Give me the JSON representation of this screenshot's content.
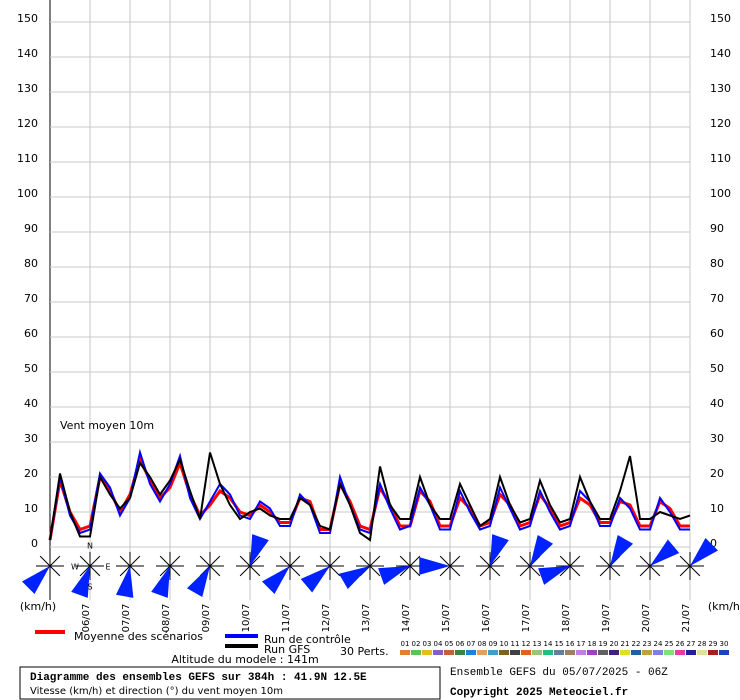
{
  "chart_data": {
    "type": "line",
    "title": "Diagramme des ensembles GEFS sur 384h : 41.9N 12.5E",
    "subtitle": "Vitesse (km/h) et direction (°) du vent moyen 10m",
    "annotation": "Vent moyen 10m",
    "y_unit": "(km/h)",
    "y2_unit": "(km/h)",
    "altitude": "Altitude du modele : 141m",
    "run_info": "Ensemble GEFS du 05/07/2025 - 06Z",
    "copyright": "Copyright 2025 Meteociel.fr",
    "compass": [
      "N",
      "W",
      "E",
      "S"
    ],
    "x": [
      0,
      6,
      12,
      18,
      24,
      30,
      36,
      42,
      48,
      54,
      60,
      66,
      72,
      78,
      84,
      90,
      96,
      102,
      108,
      114,
      120,
      126,
      132,
      138,
      144,
      150,
      156,
      162,
      168,
      174,
      180,
      186,
      192,
      198,
      204,
      210,
      216,
      222,
      228,
      234,
      240,
      246,
      252,
      258,
      264,
      270,
      276,
      282,
      288,
      294,
      300,
      306,
      312,
      318,
      324,
      330,
      336,
      342,
      348,
      354,
      360,
      366,
      372,
      378,
      384
    ],
    "xlim": [
      0,
      384
    ],
    "xticks": [
      {
        "value": 24,
        "label": "06/07"
      },
      {
        "value": 48,
        "label": "07/07"
      },
      {
        "value": 72,
        "label": "08/07"
      },
      {
        "value": 96,
        "label": "09/07"
      },
      {
        "value": 120,
        "label": "10/07"
      },
      {
        "value": 144,
        "label": "11/07"
      },
      {
        "value": 168,
        "label": "12/07"
      },
      {
        "value": 192,
        "label": "13/07"
      },
      {
        "value": 216,
        "label": "14/07"
      },
      {
        "value": 240,
        "label": "15/07"
      },
      {
        "value": 264,
        "label": "16/07"
      },
      {
        "value": 288,
        "label": "17/07"
      },
      {
        "value": 312,
        "label": "18/07"
      },
      {
        "value": 336,
        "label": "19/07"
      },
      {
        "value": 360,
        "label": "20/07"
      },
      {
        "value": 384,
        "label": "21/07"
      }
    ],
    "ylim": [
      0,
      150
    ],
    "yticks": [
      0,
      10,
      20,
      30,
      40,
      50,
      60,
      70,
      80,
      90,
      100,
      110,
      120,
      130,
      140,
      150
    ],
    "grid": true,
    "series": [
      {
        "name": "Moyenne des scénarios",
        "color": "#ff0000",
        "values": [
          2,
          19,
          10,
          5,
          6,
          20,
          16,
          10,
          15,
          25,
          19,
          14,
          17,
          24,
          15,
          9,
          12,
          16,
          14,
          10,
          9,
          12,
          10,
          7,
          7,
          14,
          13,
          5,
          5,
          18,
          13,
          6,
          5,
          17,
          12,
          6,
          6,
          16,
          13,
          6,
          6,
          14,
          11,
          6,
          7,
          15,
          12,
          6,
          7,
          15,
          11,
          6,
          7,
          14,
          12,
          7,
          7,
          13,
          12,
          6,
          6,
          13,
          11,
          6,
          6
        ]
      },
      {
        "name": "Run de contrôle",
        "color": "#0000ff",
        "values": [
          2,
          20,
          9,
          4,
          5,
          21,
          17,
          9,
          14,
          27,
          18,
          13,
          18,
          26,
          14,
          8,
          13,
          18,
          15,
          9,
          8,
          13,
          11,
          6,
          6,
          15,
          12,
          4,
          4,
          20,
          12,
          5,
          4,
          18,
          11,
          5,
          6,
          17,
          12,
          5,
          5,
          16,
          10,
          5,
          6,
          17,
          11,
          5,
          6,
          16,
          10,
          5,
          6,
          16,
          13,
          6,
          6,
          14,
          11,
          5,
          5,
          14,
          10,
          5,
          5
        ]
      },
      {
        "name": "Run GFS",
        "color": "#000000",
        "values": [
          2,
          21,
          10,
          3,
          3,
          20,
          15,
          11,
          14,
          24,
          20,
          15,
          19,
          25,
          16,
          8,
          27,
          18,
          12,
          8,
          10,
          11,
          9,
          8,
          8,
          14,
          12,
          6,
          5,
          18,
          12,
          4,
          2,
          23,
          12,
          8,
          8,
          20,
          12,
          8,
          8,
          18,
          12,
          6,
          8,
          20,
          12,
          7,
          8,
          19,
          12,
          7,
          8,
          20,
          13,
          8,
          8,
          16,
          26,
          8,
          8,
          10,
          9,
          8,
          9
        ]
      }
    ],
    "perturbations_label": "30 Perts.",
    "perturbations": [
      {
        "name": "01",
        "color": "#e08030"
      },
      {
        "name": "02",
        "color": "#60c060"
      },
      {
        "name": "03",
        "color": "#e0c020"
      },
      {
        "name": "04",
        "color": "#8060c0"
      },
      {
        "name": "05",
        "color": "#c06040"
      },
      {
        "name": "06",
        "color": "#408040"
      },
      {
        "name": "07",
        "color": "#2080e0"
      },
      {
        "name": "08",
        "color": "#e0a060"
      },
      {
        "name": "09",
        "color": "#40a0c0"
      },
      {
        "name": "10",
        "color": "#806020"
      },
      {
        "name": "11",
        "color": "#404040"
      },
      {
        "name": "12",
        "color": "#e06020"
      },
      {
        "name": "13",
        "color": "#a0c080"
      },
      {
        "name": "14",
        "color": "#20c080"
      },
      {
        "name": "15",
        "color": "#6080a0"
      },
      {
        "name": "16",
        "color": "#a08060"
      },
      {
        "name": "17",
        "color": "#c080e0"
      },
      {
        "name": "18",
        "color": "#a040c0"
      },
      {
        "name": "19",
        "color": "#606060"
      },
      {
        "name": "20",
        "color": "#402080"
      },
      {
        "name": "21",
        "color": "#e0e020"
      },
      {
        "name": "22",
        "color": "#2060a0"
      },
      {
        "name": "23",
        "color": "#c0a040"
      },
      {
        "name": "24",
        "color": "#8080e0"
      },
      {
        "name": "25",
        "color": "#80e080"
      },
      {
        "name": "26",
        "color": "#e040a0"
      },
      {
        "name": "27",
        "color": "#2020a0"
      },
      {
        "name": "28",
        "color": "#e0e0a0"
      },
      {
        "name": "29",
        "color": "#a02020"
      },
      {
        "name": "30",
        "color": "#2040c0"
      }
    ],
    "wind_roses": {
      "x": [
        0,
        24,
        48,
        72,
        96,
        120,
        144,
        168,
        192,
        216,
        240,
        264,
        288,
        312,
        336,
        360,
        384
      ],
      "directions": [
        225,
        200,
        190,
        200,
        210,
        20,
        225,
        230,
        240,
        250,
        270,
        20,
        30,
        250,
        30,
        50,
        45
      ]
    }
  }
}
